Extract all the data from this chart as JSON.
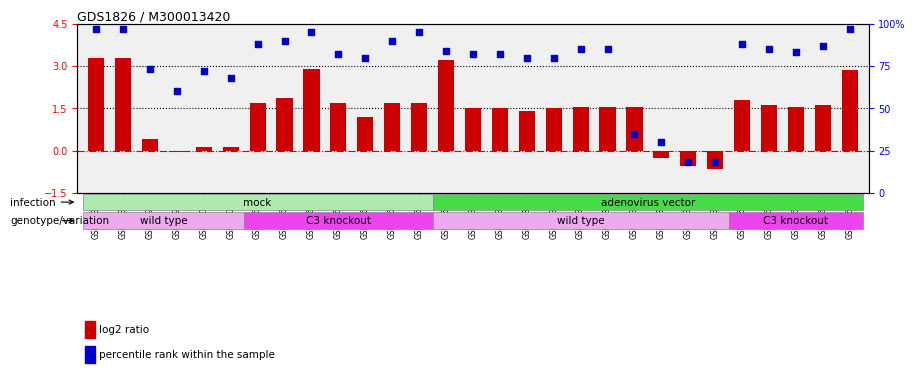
{
  "title": "GDS1826 / M300013420",
  "samples": [
    "GSM87316",
    "GSM87317",
    "GSM93998",
    "GSM93999",
    "GSM94000",
    "GSM94001",
    "GSM93633",
    "GSM93634",
    "GSM93651",
    "GSM93652",
    "GSM93653",
    "GSM93654",
    "GSM93657",
    "GSM86643",
    "GSM87306",
    "GSM87307",
    "GSM87308",
    "GSM87309",
    "GSM87310",
    "GSM87311",
    "GSM87312",
    "GSM87313",
    "GSM87314",
    "GSM87315",
    "GSM93655",
    "GSM93656",
    "GSM93658",
    "GSM93659",
    "GSM93660"
  ],
  "log2_ratio": [
    3.3,
    3.3,
    0.4,
    -0.05,
    0.12,
    0.12,
    1.7,
    1.85,
    2.9,
    1.7,
    1.2,
    1.7,
    1.7,
    3.2,
    1.5,
    1.5,
    1.4,
    1.5,
    1.55,
    1.55,
    1.55,
    -0.28,
    -0.55,
    -0.65,
    1.8,
    1.6,
    1.55,
    1.6,
    2.85
  ],
  "percentile": [
    97,
    97,
    73,
    60,
    72,
    68,
    88,
    90,
    95,
    82,
    80,
    90,
    95,
    84,
    82,
    82,
    80,
    80,
    85,
    85,
    35,
    30,
    18,
    18,
    88,
    85,
    83,
    87,
    97
  ],
  "infection_groups": [
    {
      "label": "mock",
      "start": 0,
      "end": 13,
      "color": "#AEEAAE"
    },
    {
      "label": "adenovirus vector",
      "start": 13,
      "end": 29,
      "color": "#44DD44"
    }
  ],
  "genotype_groups": [
    {
      "label": "wild type",
      "start": 0,
      "end": 6,
      "color": "#EEAAEE"
    },
    {
      "label": "C3 knockout",
      "start": 6,
      "end": 13,
      "color": "#EE44EE"
    },
    {
      "label": "wild type",
      "start": 13,
      "end": 24,
      "color": "#EEAAEE"
    },
    {
      "label": "C3 knockout",
      "start": 24,
      "end": 29,
      "color": "#EE44EE"
    }
  ],
  "bar_color": "#CC0000",
  "dot_color": "#0000CC",
  "ylim_left": [
    -1.5,
    4.5
  ],
  "ylim_right": [
    0,
    100
  ],
  "yticks_left": [
    -1.5,
    0.0,
    1.5,
    3.0,
    4.5
  ],
  "yticks_right": [
    0,
    25,
    50,
    75,
    100
  ],
  "background_color": "#F0F0F0",
  "chart_bg": "#FFFFFF"
}
